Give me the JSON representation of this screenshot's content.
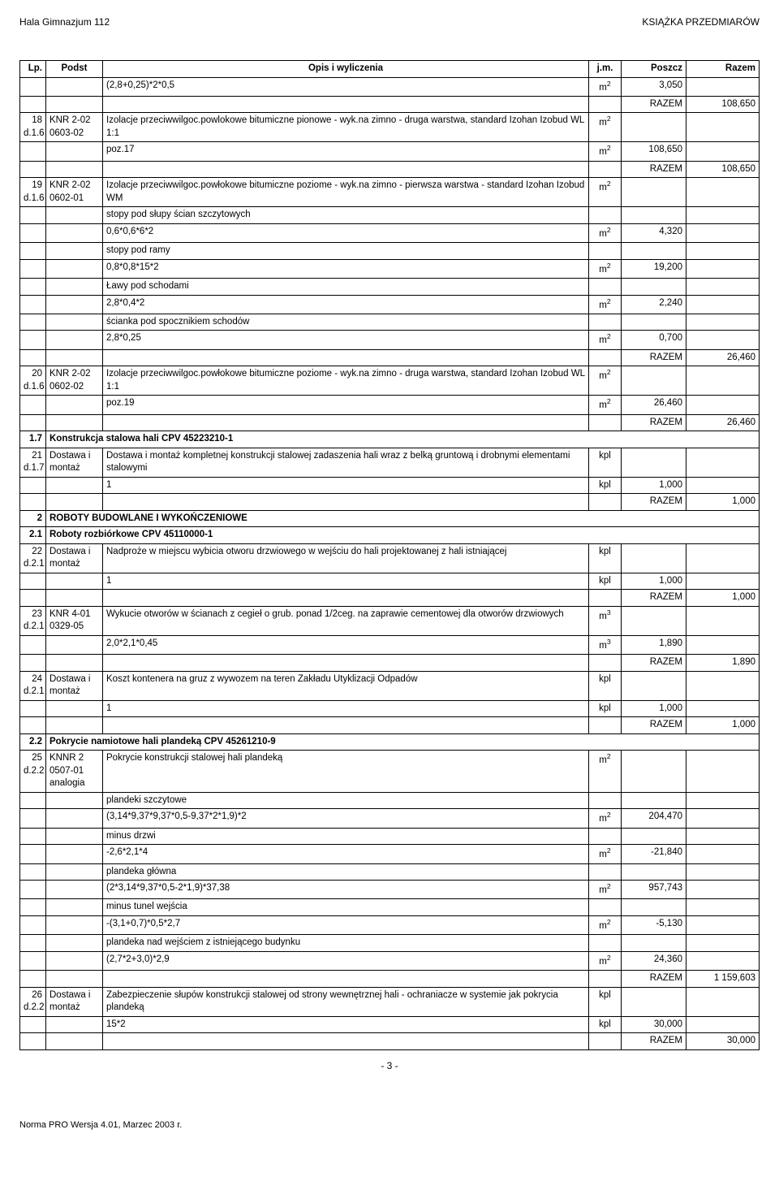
{
  "header": {
    "left": "Hala Gimnazjum 112",
    "right": "KSIĄŻKA PRZEDMIARÓW"
  },
  "columns": {
    "lp": "Lp.",
    "podst": "Podst",
    "opis": "Opis i wyliczenia",
    "jm": "j.m.",
    "poszcz": "Poszcz",
    "razem": "Razem"
  },
  "rows": [
    {
      "type": "calc",
      "opis": "(2,8+0,25)*2*0,5",
      "jm": "m²",
      "poszcz": "3,050"
    },
    {
      "type": "razem",
      "razem_label": "RAZEM",
      "razem": "108,650"
    },
    {
      "type": "item",
      "lp": "18 d.1.6",
      "podst": "KNR 2-02 0603-02",
      "opis": "Izolacje przeciwwilgoc.powlokowe bitumiczne pionowe - wyk.na zimno - druga warstwa, standard Izohan Izobud WL 1:1",
      "jm": "m²"
    },
    {
      "type": "calc",
      "opis": "poz.17",
      "jm": "m²",
      "poszcz": "108,650"
    },
    {
      "type": "razem",
      "razem_label": "RAZEM",
      "razem": "108,650"
    },
    {
      "type": "item",
      "lp": "19 d.1.6",
      "podst": "KNR 2-02 0602-01",
      "opis": "Izolacje przeciwwilgoc.powłokowe bitumiczne poziome - wyk.na zimno - pierwsza warstwa - standard Izohan Izobud WM",
      "jm": "m²"
    },
    {
      "type": "calc",
      "opis": "stopy pod słupy ścian szczytowych",
      "jm": "",
      "poszcz": ""
    },
    {
      "type": "calc",
      "opis": "0,6*0,6*6*2",
      "jm": "m²",
      "poszcz": "4,320"
    },
    {
      "type": "calc",
      "opis": "stopy pod ramy",
      "jm": "",
      "poszcz": ""
    },
    {
      "type": "calc",
      "opis": "0,8*0,8*15*2",
      "jm": "m²",
      "poszcz": "19,200"
    },
    {
      "type": "calc",
      "opis": "Ławy pod schodami",
      "jm": "",
      "poszcz": ""
    },
    {
      "type": "calc",
      "opis": "2,8*0,4*2",
      "jm": "m²",
      "poszcz": "2,240"
    },
    {
      "type": "calc",
      "opis": "ścianka pod spocznikiem schodów",
      "jm": "",
      "poszcz": ""
    },
    {
      "type": "calc",
      "opis": "2,8*0,25",
      "jm": "m²",
      "poszcz": "0,700"
    },
    {
      "type": "razem",
      "razem_label": "RAZEM",
      "razem": "26,460"
    },
    {
      "type": "item",
      "lp": "20 d.1.6",
      "podst": "KNR 2-02 0602-02",
      "opis": "Izolacje przeciwwilgoc.powłokowe bitumiczne poziome - wyk.na zimno - druga warstwa, standard Izohan Izobud WL 1:1",
      "jm": "m²"
    },
    {
      "type": "calc",
      "opis": "poz.19",
      "jm": "m²",
      "poszcz": "26,460"
    },
    {
      "type": "razem",
      "razem_label": "RAZEM",
      "razem": "26,460"
    },
    {
      "type": "section",
      "lp": "1.7",
      "opis": "Konstrukcja stalowa hali CPV 45223210-1"
    },
    {
      "type": "item",
      "lp": "21 d.1.7",
      "podst": "Dostawa i montaż",
      "opis": "Dostawa i montaż kompletnej konstrukcji stalowej zadaszenia hali wraz z belką gruntową i drobnymi elementami stalowymi",
      "jm": "kpl"
    },
    {
      "type": "calc",
      "opis": "1",
      "jm": "kpl",
      "poszcz": "1,000"
    },
    {
      "type": "razem",
      "razem_label": "RAZEM",
      "razem": "1,000"
    },
    {
      "type": "section",
      "lp": "2",
      "opis": "ROBOTY BUDOWLANE I WYKOŃCZENIOWE"
    },
    {
      "type": "section",
      "lp": "2.1",
      "opis": "Roboty rozbiórkowe CPV 45110000-1"
    },
    {
      "type": "item",
      "lp": "22 d.2.1",
      "podst": "Dostawa i montaż",
      "opis": "Nadproże w miejscu wybicia otworu drzwiowego w wejściu do hali projektowanej z hali istniającej",
      "jm": "kpl"
    },
    {
      "type": "calc",
      "opis": "1",
      "jm": "kpl",
      "poszcz": "1,000"
    },
    {
      "type": "razem",
      "razem_label": "RAZEM",
      "razem": "1,000"
    },
    {
      "type": "item",
      "lp": "23 d.2.1",
      "podst": "KNR 4-01 0329-05",
      "opis": "Wykucie otworów w ścianach z cegieł o grub. ponad 1/2ceg. na zaprawie cementowej dla otworów drzwiowych",
      "jm": "m³"
    },
    {
      "type": "calc",
      "opis": "2,0*2,1*0,45",
      "jm": "m³",
      "poszcz": "1,890"
    },
    {
      "type": "razem",
      "razem_label": "RAZEM",
      "razem": "1,890"
    },
    {
      "type": "item",
      "lp": "24 d.2.1",
      "podst": "Dostawa i montaż",
      "opis": "Koszt kontenera na gruz z wywozem na teren Zakładu Utyklizacji Odpadów",
      "jm": "kpl"
    },
    {
      "type": "calc",
      "opis": "1",
      "jm": "kpl",
      "poszcz": "1,000"
    },
    {
      "type": "razem",
      "razem_label": "RAZEM",
      "razem": "1,000"
    },
    {
      "type": "section",
      "lp": "2.2",
      "opis": "Pokrycie namiotowe hali plandeką CPV 45261210-9"
    },
    {
      "type": "item",
      "lp": "25 d.2.2",
      "podst": "KNNR 2 0507-01 analogia",
      "opis": "Pokrycie konstrukcji stalowej hali plandeką",
      "jm": "m²"
    },
    {
      "type": "calc",
      "opis": "plandeki szczytowe",
      "jm": "",
      "poszcz": ""
    },
    {
      "type": "calc",
      "opis": "(3,14*9,37*9,37*0,5-9,37*2*1,9)*2",
      "jm": "m²",
      "poszcz": "204,470"
    },
    {
      "type": "calc",
      "opis": "minus drzwi",
      "jm": "",
      "poszcz": ""
    },
    {
      "type": "calc",
      "opis": "-2,6*2,1*4",
      "jm": "m²",
      "poszcz": "-21,840"
    },
    {
      "type": "calc",
      "opis": "plandeka główna",
      "jm": "",
      "poszcz": ""
    },
    {
      "type": "calc",
      "opis": "(2*3,14*9,37*0,5-2*1,9)*37,38",
      "jm": "m²",
      "poszcz": "957,743"
    },
    {
      "type": "calc",
      "opis": "minus tunel wejścia",
      "jm": "",
      "poszcz": ""
    },
    {
      "type": "calc",
      "opis": "-(3,1+0,7)*0,5*2,7",
      "jm": "m²",
      "poszcz": "-5,130"
    },
    {
      "type": "calc",
      "opis": "plandeka nad wejściem z istniejącego budynku",
      "jm": "",
      "poszcz": ""
    },
    {
      "type": "calc",
      "opis": "(2,7*2+3,0)*2,9",
      "jm": "m²",
      "poszcz": "24,360"
    },
    {
      "type": "razem",
      "razem_label": "RAZEM",
      "razem": "1 159,603"
    },
    {
      "type": "item",
      "lp": "26 d.2.2",
      "podst": "Dostawa i montaż",
      "opis": "Zabezpieczenie słupów konstrukcji stalowej od strony wewnętrznej hali - ochraniacze w systemie jak pokrycia plandeką",
      "jm": "kpl"
    },
    {
      "type": "calc",
      "opis": "15*2",
      "jm": "kpl",
      "poszcz": "30,000"
    },
    {
      "type": "razem",
      "razem_label": "RAZEM",
      "razem": "30,000"
    }
  ],
  "footer": {
    "pagenum": "- 3 -",
    "norma": "Norma PRO Wersja 4.01, Marzec 2003 r."
  }
}
